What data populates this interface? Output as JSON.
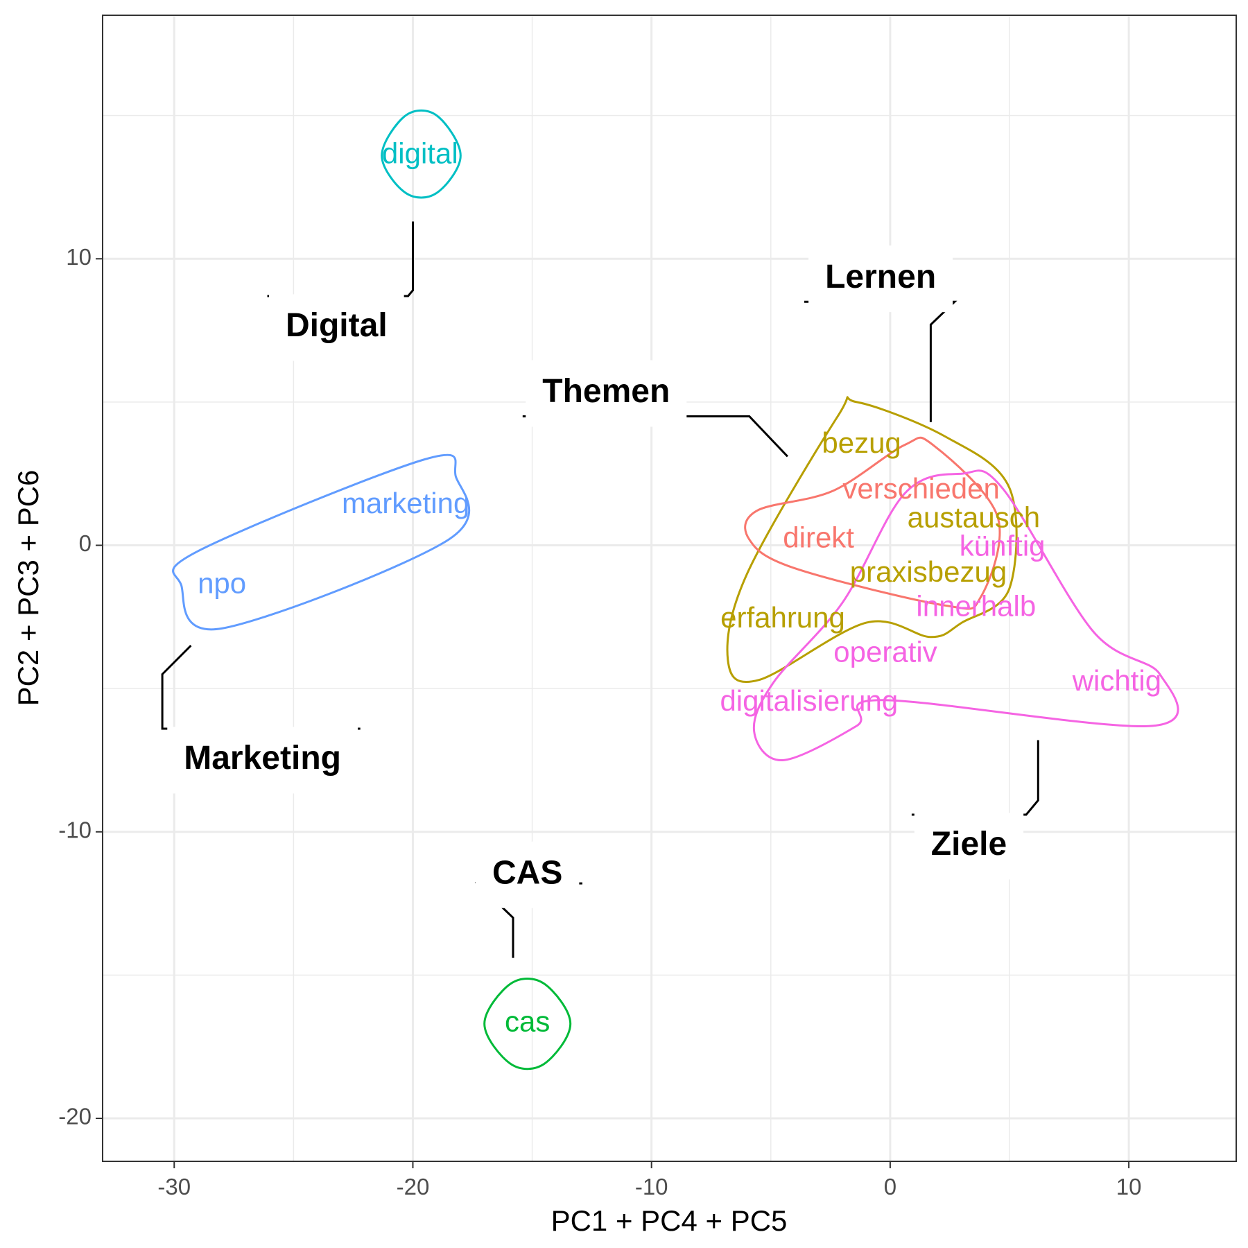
{
  "chart_data": {
    "type": "scatter",
    "title": "",
    "xlabel": "PC1 + PC4 + PC5",
    "ylabel": "PC2 + PC3 + PC6",
    "xlim": [
      -33,
      14.5
    ],
    "ylim": [
      -21.5,
      18.5
    ],
    "x_ticks": [
      -30,
      -20,
      -10,
      0,
      10
    ],
    "y_ticks": [
      10,
      0,
      -10,
      -20
    ],
    "x_tick_labels": [
      "-30",
      "-20",
      "-10",
      "0",
      "10"
    ],
    "y_tick_labels": [
      "10",
      "0",
      "-10",
      "-20"
    ],
    "grid": true,
    "legend": "none",
    "points": [
      {
        "word": "digital",
        "x": -19.7,
        "y": 13.6,
        "group": "Digital"
      },
      {
        "word": "marketing",
        "x": -20.3,
        "y": 1.4,
        "group": "Marketing"
      },
      {
        "word": "npo",
        "x": -28.0,
        "y": -1.4,
        "group": "Marketing"
      },
      {
        "word": "cas",
        "x": -15.2,
        "y": -16.7,
        "group": "CAS"
      },
      {
        "word": "bezug",
        "x": -1.2,
        "y": 3.5,
        "group": "Lernen"
      },
      {
        "word": "austausch",
        "x": 3.5,
        "y": 0.9,
        "group": "Lernen"
      },
      {
        "word": "praxisbezug",
        "x": 1.6,
        "y": -1.0,
        "group": "Lernen"
      },
      {
        "word": "erfahrung",
        "x": -4.5,
        "y": -2.6,
        "group": "Lernen"
      },
      {
        "word": "verschieden",
        "x": 1.3,
        "y": 1.9,
        "group": "Themen"
      },
      {
        "word": "direkt",
        "x": -3.0,
        "y": 0.2,
        "group": "Themen"
      },
      {
        "word": "künftig",
        "x": 4.7,
        "y": -0.1,
        "group": "Ziele"
      },
      {
        "word": "innerhalb",
        "x": 3.6,
        "y": -2.2,
        "group": "Ziele"
      },
      {
        "word": "operativ",
        "x": -0.2,
        "y": -3.8,
        "group": "Ziele"
      },
      {
        "word": "wichtig",
        "x": 9.5,
        "y": -4.8,
        "group": "Ziele"
      },
      {
        "word": "digitalisierung",
        "x": -3.4,
        "y": -5.5,
        "group": "Ziele"
      }
    ],
    "groups": [
      {
        "name": "Digital",
        "color": "#00BFC4",
        "hull": [
          [
            -21.3,
            13.6
          ],
          [
            -20.3,
            15.0
          ],
          [
            -19.0,
            15.0
          ],
          [
            -18.0,
            13.6
          ],
          [
            -19.0,
            12.3
          ],
          [
            -20.3,
            12.3
          ]
        ]
      },
      {
        "name": "Marketing",
        "color": "#619CFF",
        "hull": [
          [
            -19.5,
            3.0
          ],
          [
            -18.2,
            2.4
          ],
          [
            -18.5,
            0.2
          ],
          [
            -28.0,
            -2.9
          ],
          [
            -29.7,
            -1.4
          ],
          [
            -29.0,
            -0.2
          ]
        ]
      },
      {
        "name": "CAS",
        "color": "#00BA38",
        "hull": [
          [
            -15.9,
            -15.3
          ],
          [
            -14.5,
            -15.3
          ],
          [
            -13.4,
            -16.7
          ],
          [
            -14.5,
            -18.1
          ],
          [
            -15.9,
            -18.1
          ],
          [
            -17.0,
            -16.7
          ]
        ]
      },
      {
        "name": "Lernen",
        "color": "#B79F00",
        "hull": [
          [
            -1.4,
            5.0
          ],
          [
            2.3,
            3.8
          ],
          [
            5.0,
            2.0
          ],
          [
            5.0,
            -1.5
          ],
          [
            3.0,
            -2.7
          ],
          [
            1.7,
            -3.2
          ],
          [
            -1.0,
            -2.7
          ],
          [
            -5.5,
            -4.7
          ],
          [
            -6.8,
            -4.0
          ],
          [
            -6.0,
            -1.0
          ],
          [
            -2.2,
            4.5
          ]
        ]
      },
      {
        "name": "Themen",
        "color": "#F8766D",
        "hull": [
          [
            0.6,
            3.5
          ],
          [
            1.8,
            3.5
          ],
          [
            4.5,
            1.0
          ],
          [
            3.8,
            -1.8
          ],
          [
            2.3,
            -2.1
          ],
          [
            -4.0,
            -0.8
          ],
          [
            -5.9,
            0.2
          ],
          [
            -5.6,
            1.2
          ],
          [
            -2.4,
            1.9
          ]
        ]
      },
      {
        "name": "Ziele",
        "color": "#F564E3",
        "hull": [
          [
            3.0,
            2.5
          ],
          [
            4.7,
            2.0
          ],
          [
            8.5,
            -3.0
          ],
          [
            11.3,
            -4.5
          ],
          [
            11.0,
            -6.3
          ],
          [
            -0.3,
            -5.4
          ],
          [
            -1.4,
            -6.3
          ],
          [
            -4.5,
            -7.5
          ],
          [
            -5.7,
            -6.5
          ],
          [
            -4.9,
            -4.8
          ],
          [
            -2.0,
            -2.0
          ],
          [
            0.6,
            1.8
          ]
        ]
      }
    ],
    "labels": [
      {
        "name": "Digital",
        "x": -23.2,
        "y": 7.6,
        "line": [
          [
            -26.1,
            8.7
          ],
          [
            -20.2,
            8.7
          ],
          [
            -20.0,
            8.9
          ],
          [
            -20.0,
            11.3
          ]
        ]
      },
      {
        "name": "Lernen",
        "x": -0.4,
        "y": 9.3,
        "line": [
          [
            -3.6,
            8.5
          ],
          [
            2.7,
            8.5
          ],
          [
            1.7,
            7.7
          ],
          [
            1.7,
            4.3
          ]
        ]
      },
      {
        "name": "Themen",
        "x": -11.9,
        "y": 5.3,
        "line": [
          [
            -15.4,
            4.5
          ],
          [
            -5.9,
            4.5
          ],
          [
            -4.3,
            3.1
          ]
        ]
      },
      {
        "name": "Marketing",
        "x": -26.3,
        "y": -7.5,
        "line": [
          [
            -22.2,
            -6.4
          ],
          [
            -30.5,
            -6.4
          ],
          [
            -30.5,
            -4.5
          ],
          [
            -29.3,
            -3.5
          ]
        ]
      },
      {
        "name": "Ziele",
        "x": 3.3,
        "y": -10.5,
        "line": [
          [
            0.9,
            -9.4
          ],
          [
            5.7,
            -9.4
          ],
          [
            6.2,
            -8.9
          ],
          [
            6.2,
            -6.8
          ]
        ]
      },
      {
        "name": "CAS",
        "x": -15.2,
        "y": -11.5,
        "line": [
          [
            -12.9,
            -11.8
          ],
          [
            -17.3,
            -11.8
          ],
          [
            -15.8,
            -13.0
          ],
          [
            -15.8,
            -14.4
          ]
        ]
      }
    ]
  }
}
